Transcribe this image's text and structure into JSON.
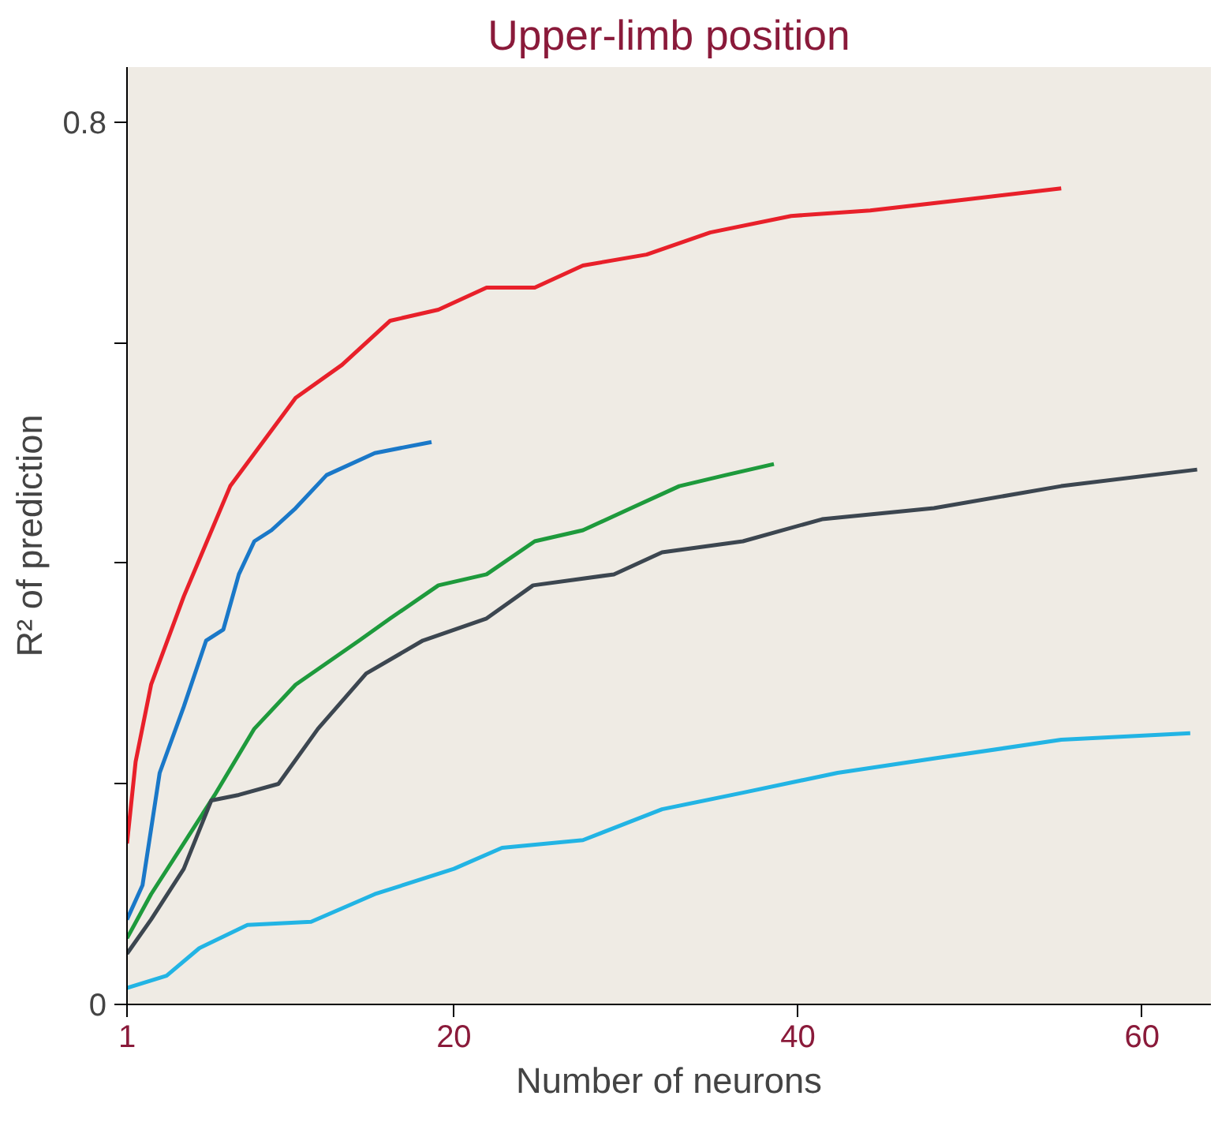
{
  "chart_data": {
    "type": "line",
    "title": "Upper-limb position",
    "xlabel": "Number of neurons",
    "ylabel": "R² of prediction",
    "xlim": [
      1,
      64
    ],
    "ylim": [
      0,
      0.85
    ],
    "xticks": [
      1,
      20,
      40,
      60
    ],
    "yticks": [
      0,
      {
        "value": 0.2,
        "label": null
      },
      {
        "value": 0.4,
        "label": null
      },
      {
        "value": 0.6,
        "label": null
      },
      0.8
    ],
    "grid": false,
    "marker": "none",
    "line_style": "solid",
    "series": [
      {
        "color": "#e8202a",
        "x": [
          1,
          1.5,
          2.4,
          4.3,
          7.0,
          10.8,
          13.5,
          16.3,
          19.1,
          21.9,
          24.7,
          27.5,
          31.2,
          34.9,
          39.6,
          44.2,
          49.8,
          55.3
        ],
        "values": [
          0.146,
          0.22,
          0.29,
          0.37,
          0.47,
          0.55,
          0.58,
          0.62,
          0.63,
          0.65,
          0.65,
          0.67,
          0.68,
          0.7,
          0.715,
          0.72,
          0.73,
          0.74
        ]
      },
      {
        "color": "#1a78c8",
        "x": [
          1,
          1.9,
          2.9,
          4.3,
          5.6,
          6.6,
          7.5,
          8.4,
          9.4,
          10.8,
          12.6,
          15.4,
          18.7
        ],
        "values": [
          0.077,
          0.108,
          0.21,
          0.27,
          0.33,
          0.34,
          0.39,
          0.42,
          0.43,
          0.45,
          0.48,
          0.5,
          0.51
        ]
      },
      {
        "color": "#1e9a3c",
        "x": [
          1,
          2.4,
          4.3,
          6.1,
          8.4,
          10.8,
          14.5,
          16.3,
          19.1,
          21.9,
          24.7,
          27.5,
          30.3,
          33.1,
          35.8,
          38.6
        ],
        "values": [
          0.06,
          0.1,
          0.146,
          0.19,
          0.25,
          0.29,
          0.33,
          0.35,
          0.38,
          0.39,
          0.42,
          0.43,
          0.45,
          0.47,
          0.48,
          0.49
        ]
      },
      {
        "color": "#3c4650",
        "x": [
          1,
          2.4,
          4.3,
          5.9,
          7.5,
          9.8,
          12.1,
          14.9,
          18.2,
          21.9,
          24.6,
          29.3,
          32.1,
          36.8,
          41.4,
          47.9,
          55.3,
          63.2
        ],
        "values": [
          0.046,
          0.077,
          0.123,
          0.185,
          0.19,
          0.2,
          0.25,
          0.3,
          0.33,
          0.35,
          0.38,
          0.39,
          0.41,
          0.42,
          0.44,
          0.45,
          0.47,
          0.485
        ]
      },
      {
        "color": "#22b4e4",
        "x": [
          1,
          3.3,
          5.2,
          8.0,
          11.7,
          15.4,
          20.0,
          22.8,
          27.5,
          32.1,
          36.8,
          42.3,
          47.9,
          55.3,
          62.8
        ],
        "values": [
          0.015,
          0.026,
          0.051,
          0.072,
          0.075,
          0.1,
          0.123,
          0.142,
          0.149,
          0.177,
          0.192,
          0.21,
          0.223,
          0.24,
          0.246
        ]
      }
    ]
  }
}
